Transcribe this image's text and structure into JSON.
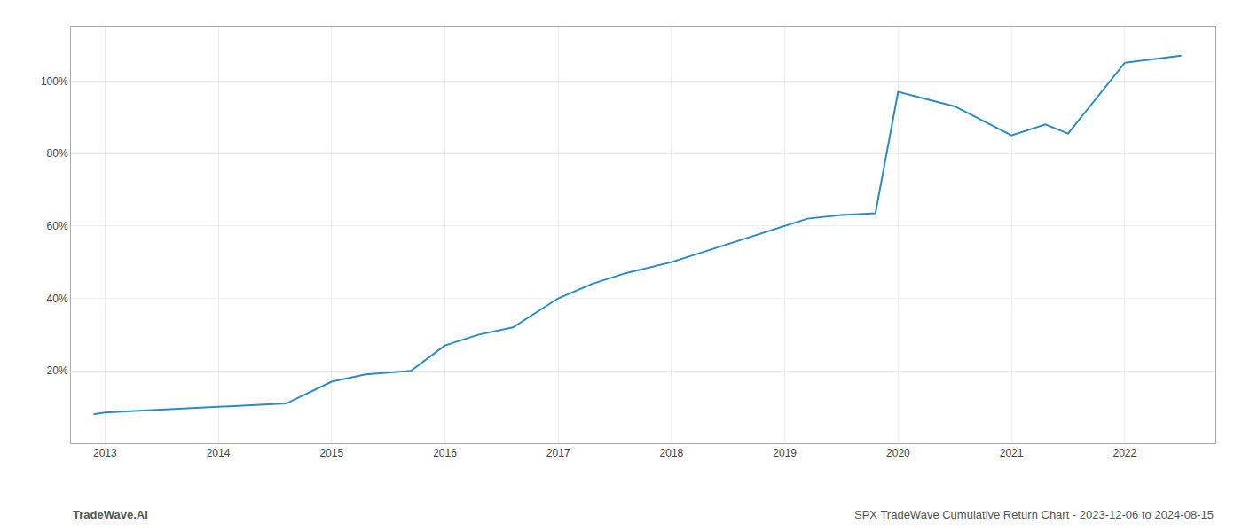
{
  "chart_data": {
    "type": "line",
    "x": [
      2012.9,
      2013.0,
      2013.3,
      2013.6,
      2014.0,
      2014.3,
      2014.6,
      2015.0,
      2015.3,
      2015.7,
      2016.0,
      2016.3,
      2016.6,
      2017.0,
      2017.3,
      2017.6,
      2018.0,
      2018.3,
      2018.6,
      2019.0,
      2019.2,
      2019.5,
      2019.8,
      2020.0,
      2020.5,
      2021.0,
      2021.3,
      2021.5,
      2022.0,
      2022.5
    ],
    "values": [
      0.08,
      0.085,
      0.09,
      0.095,
      0.1,
      0.105,
      0.11,
      0.17,
      0.19,
      0.2,
      0.27,
      0.3,
      0.32,
      0.4,
      0.44,
      0.47,
      0.5,
      0.53,
      0.56,
      0.6,
      0.62,
      0.63,
      0.635,
      0.97,
      0.93,
      0.85,
      0.88,
      0.855,
      1.05,
      1.07
    ],
    "color": "#2b8cc4",
    "xlim": [
      2012.7,
      2022.8
    ],
    "xticks": [
      2013,
      2014,
      2015,
      2016,
      2017,
      2018,
      2019,
      2020,
      2021,
      2022
    ],
    "ylim": [
      0.0,
      1.15
    ],
    "yticks": [
      {
        "value": 0.2,
        "label": "20%"
      },
      {
        "value": 0.4,
        "label": "40%"
      },
      {
        "value": 0.6,
        "label": "60%"
      },
      {
        "value": 0.8,
        "label": "80%"
      },
      {
        "value": 1.0,
        "label": "100%"
      }
    ],
    "grid": true,
    "annotations": [
      "TradeWave.AI",
      "SPX TradeWave Cumulative Return Chart - 2023-12-06 to 2024-08-15"
    ]
  }
}
